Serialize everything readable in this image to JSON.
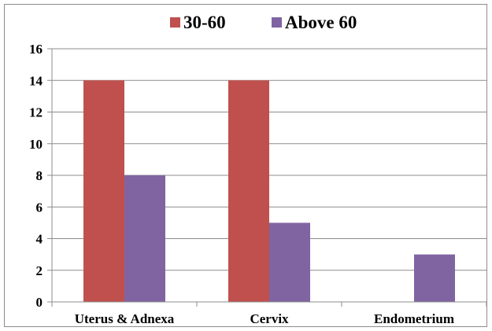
{
  "chart_data": {
    "type": "bar",
    "categories": [
      "Uterus & Adnexa",
      "Cervix",
      "Endometrium"
    ],
    "series": [
      {
        "name": "30-60",
        "values": [
          14,
          14,
          0
        ],
        "color": "#c0504d"
      },
      {
        "name": "Above 60",
        "values": [
          8,
          5,
          3
        ],
        "color": "#8064a2"
      }
    ],
    "yticks": [
      "0",
      "2",
      "4",
      "6",
      "8",
      "10",
      "12",
      "14",
      "16"
    ],
    "ylim": [
      0,
      16
    ],
    "grid": true,
    "legend_position": "top"
  }
}
